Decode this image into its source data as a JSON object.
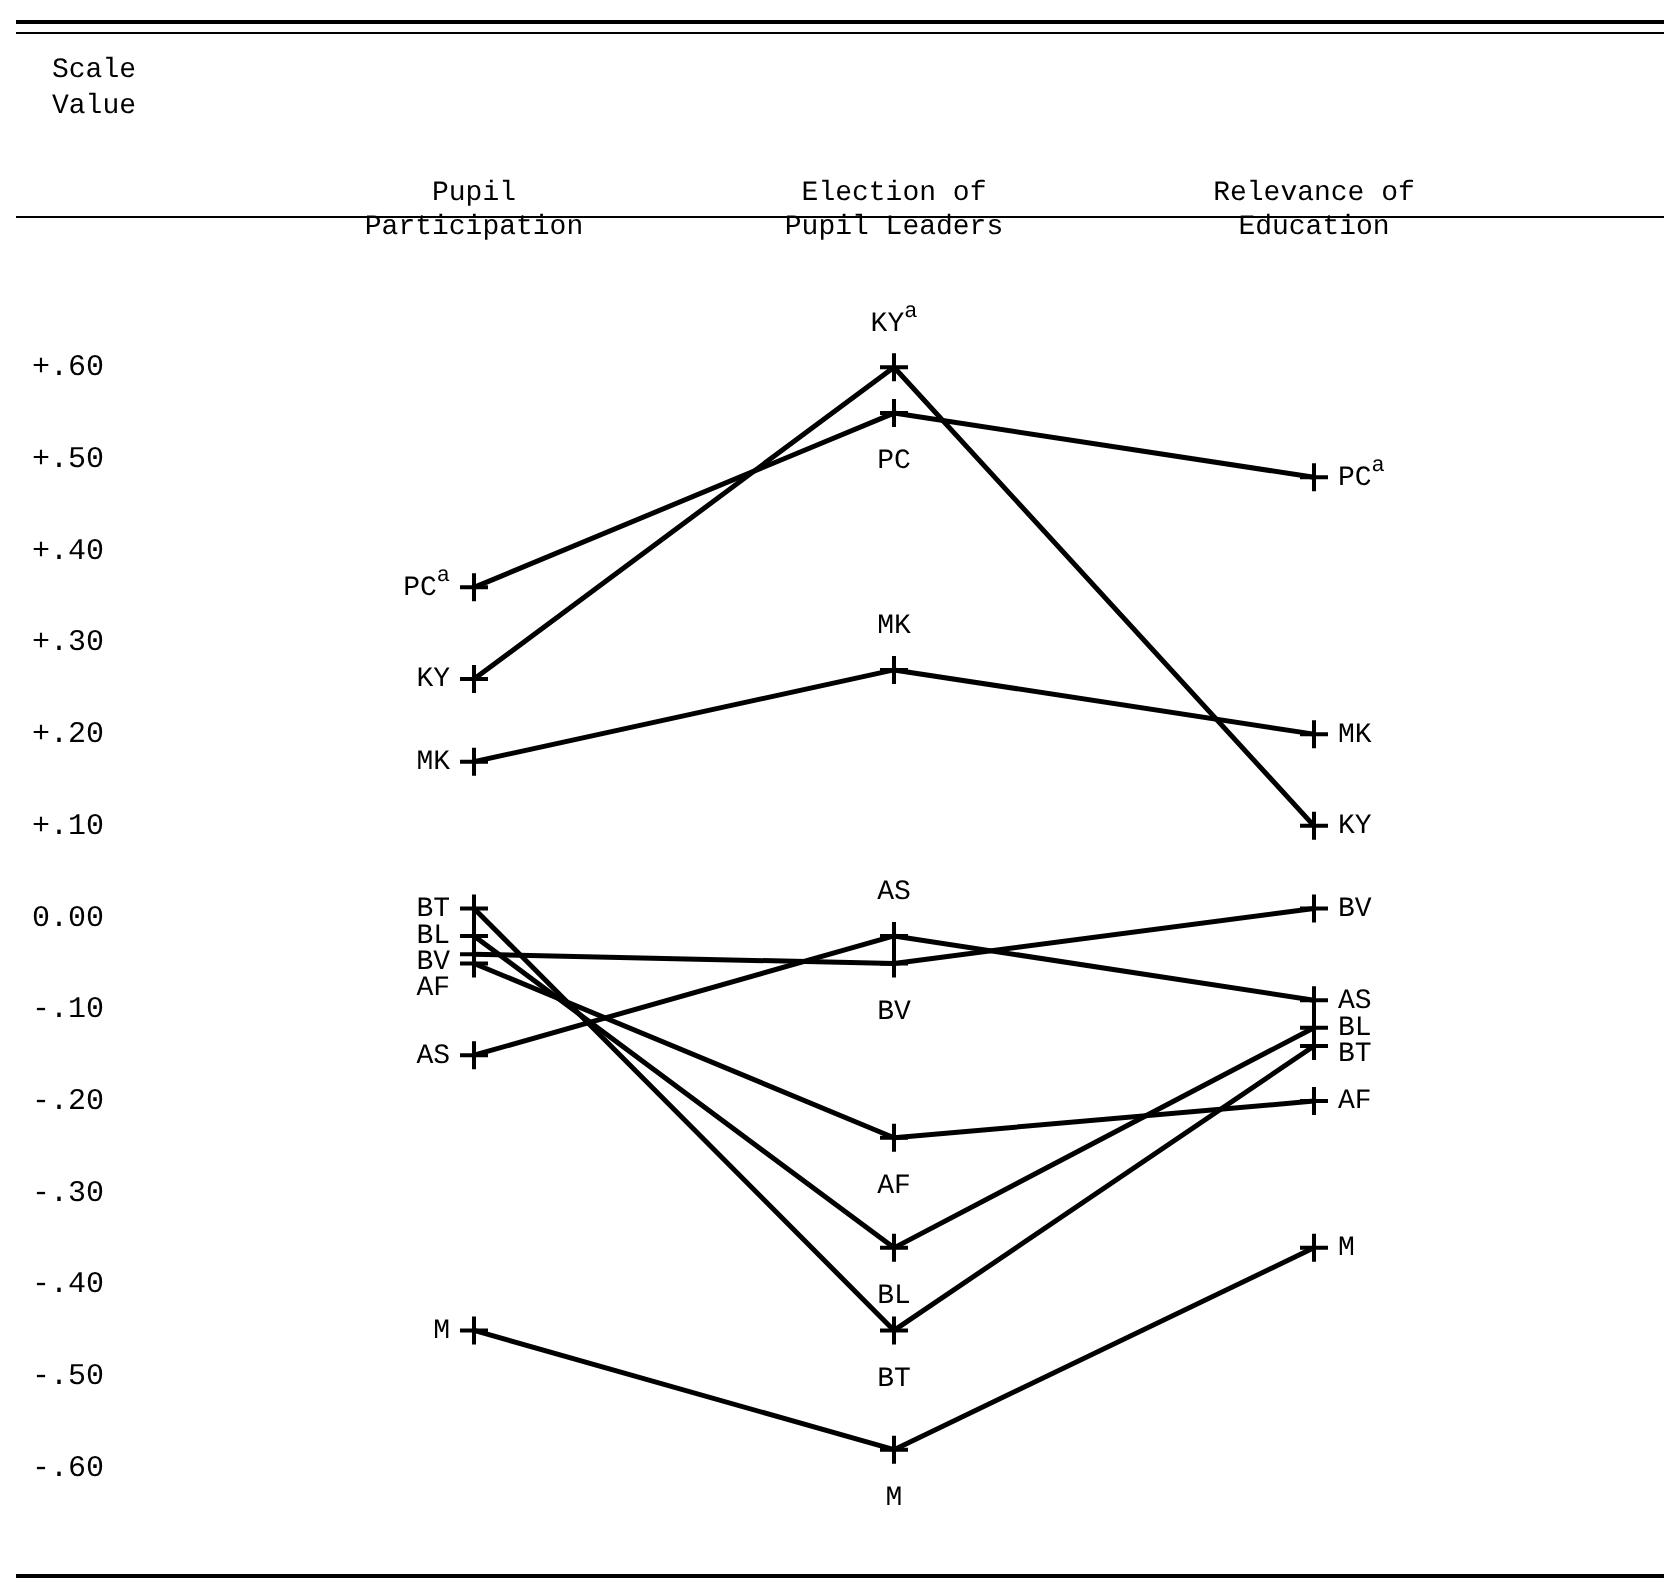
{
  "chart_data": {
    "type": "line",
    "ylabel": "Scale Value",
    "categories": [
      "Pupil Participation",
      "Election of Pupil Leaders",
      "Relevance of Education"
    ],
    "ylim": [
      -0.6,
      0.6
    ],
    "annotations": [
      {
        "text": "a",
        "x": "Election of Pupil Leaders",
        "y": 0.6
      },
      {
        "text": "a",
        "x": "Pupil Participation",
        "y": 0.36
      },
      {
        "text": "a",
        "x": "Relevance of Education",
        "y": 0.48
      }
    ],
    "yticks": [
      {
        "value": 0.6,
        "label": "+.60"
      },
      {
        "value": 0.5,
        "label": "+.50"
      },
      {
        "value": 0.4,
        "label": "+.40"
      },
      {
        "value": 0.3,
        "label": "+.30"
      },
      {
        "value": 0.2,
        "label": "+.20"
      },
      {
        "value": 0.1,
        "label": "+.10"
      },
      {
        "value": 0,
        "label": "0.00"
      },
      {
        "value": -0.1,
        "label": "-.10"
      },
      {
        "value": -0.2,
        "label": "-.20"
      },
      {
        "value": -0.3,
        "label": "-.30"
      },
      {
        "value": -0.4,
        "label": "-.40"
      },
      {
        "value": -0.5,
        "label": "-.50"
      },
      {
        "value": -0.6,
        "label": "-.60"
      }
    ],
    "marker": "cross",
    "line_style": "solid",
    "grid": false,
    "legend": false,
    "series": [
      {
        "name": "KY",
        "color": "#000000",
        "values": [
          0.26,
          0.6,
          0.1
        ]
      },
      {
        "name": "PC",
        "color": "#000000",
        "values": [
          0.36,
          0.55,
          0.48
        ]
      },
      {
        "name": "MK",
        "color": "#000000",
        "values": [
          0.17,
          0.27,
          0.2
        ]
      },
      {
        "name": "BT",
        "color": "#000000",
        "values": [
          0.01,
          -0.45,
          -0.14
        ]
      },
      {
        "name": "BL",
        "color": "#000000",
        "values": [
          -0.02,
          -0.36,
          -0.12
        ]
      },
      {
        "name": "BV",
        "color": "#000000",
        "values": [
          -0.04,
          -0.05,
          0.01
        ]
      },
      {
        "name": "AF",
        "color": "#000000",
        "values": [
          -0.05,
          -0.24,
          -0.2
        ]
      },
      {
        "name": "AS",
        "color": "#000000",
        "values": [
          -0.15,
          -0.02,
          -0.09
        ]
      },
      {
        "name": "M",
        "color": "#000000",
        "values": [
          -0.45,
          -0.58,
          -0.36
        ]
      }
    ]
  }
}
